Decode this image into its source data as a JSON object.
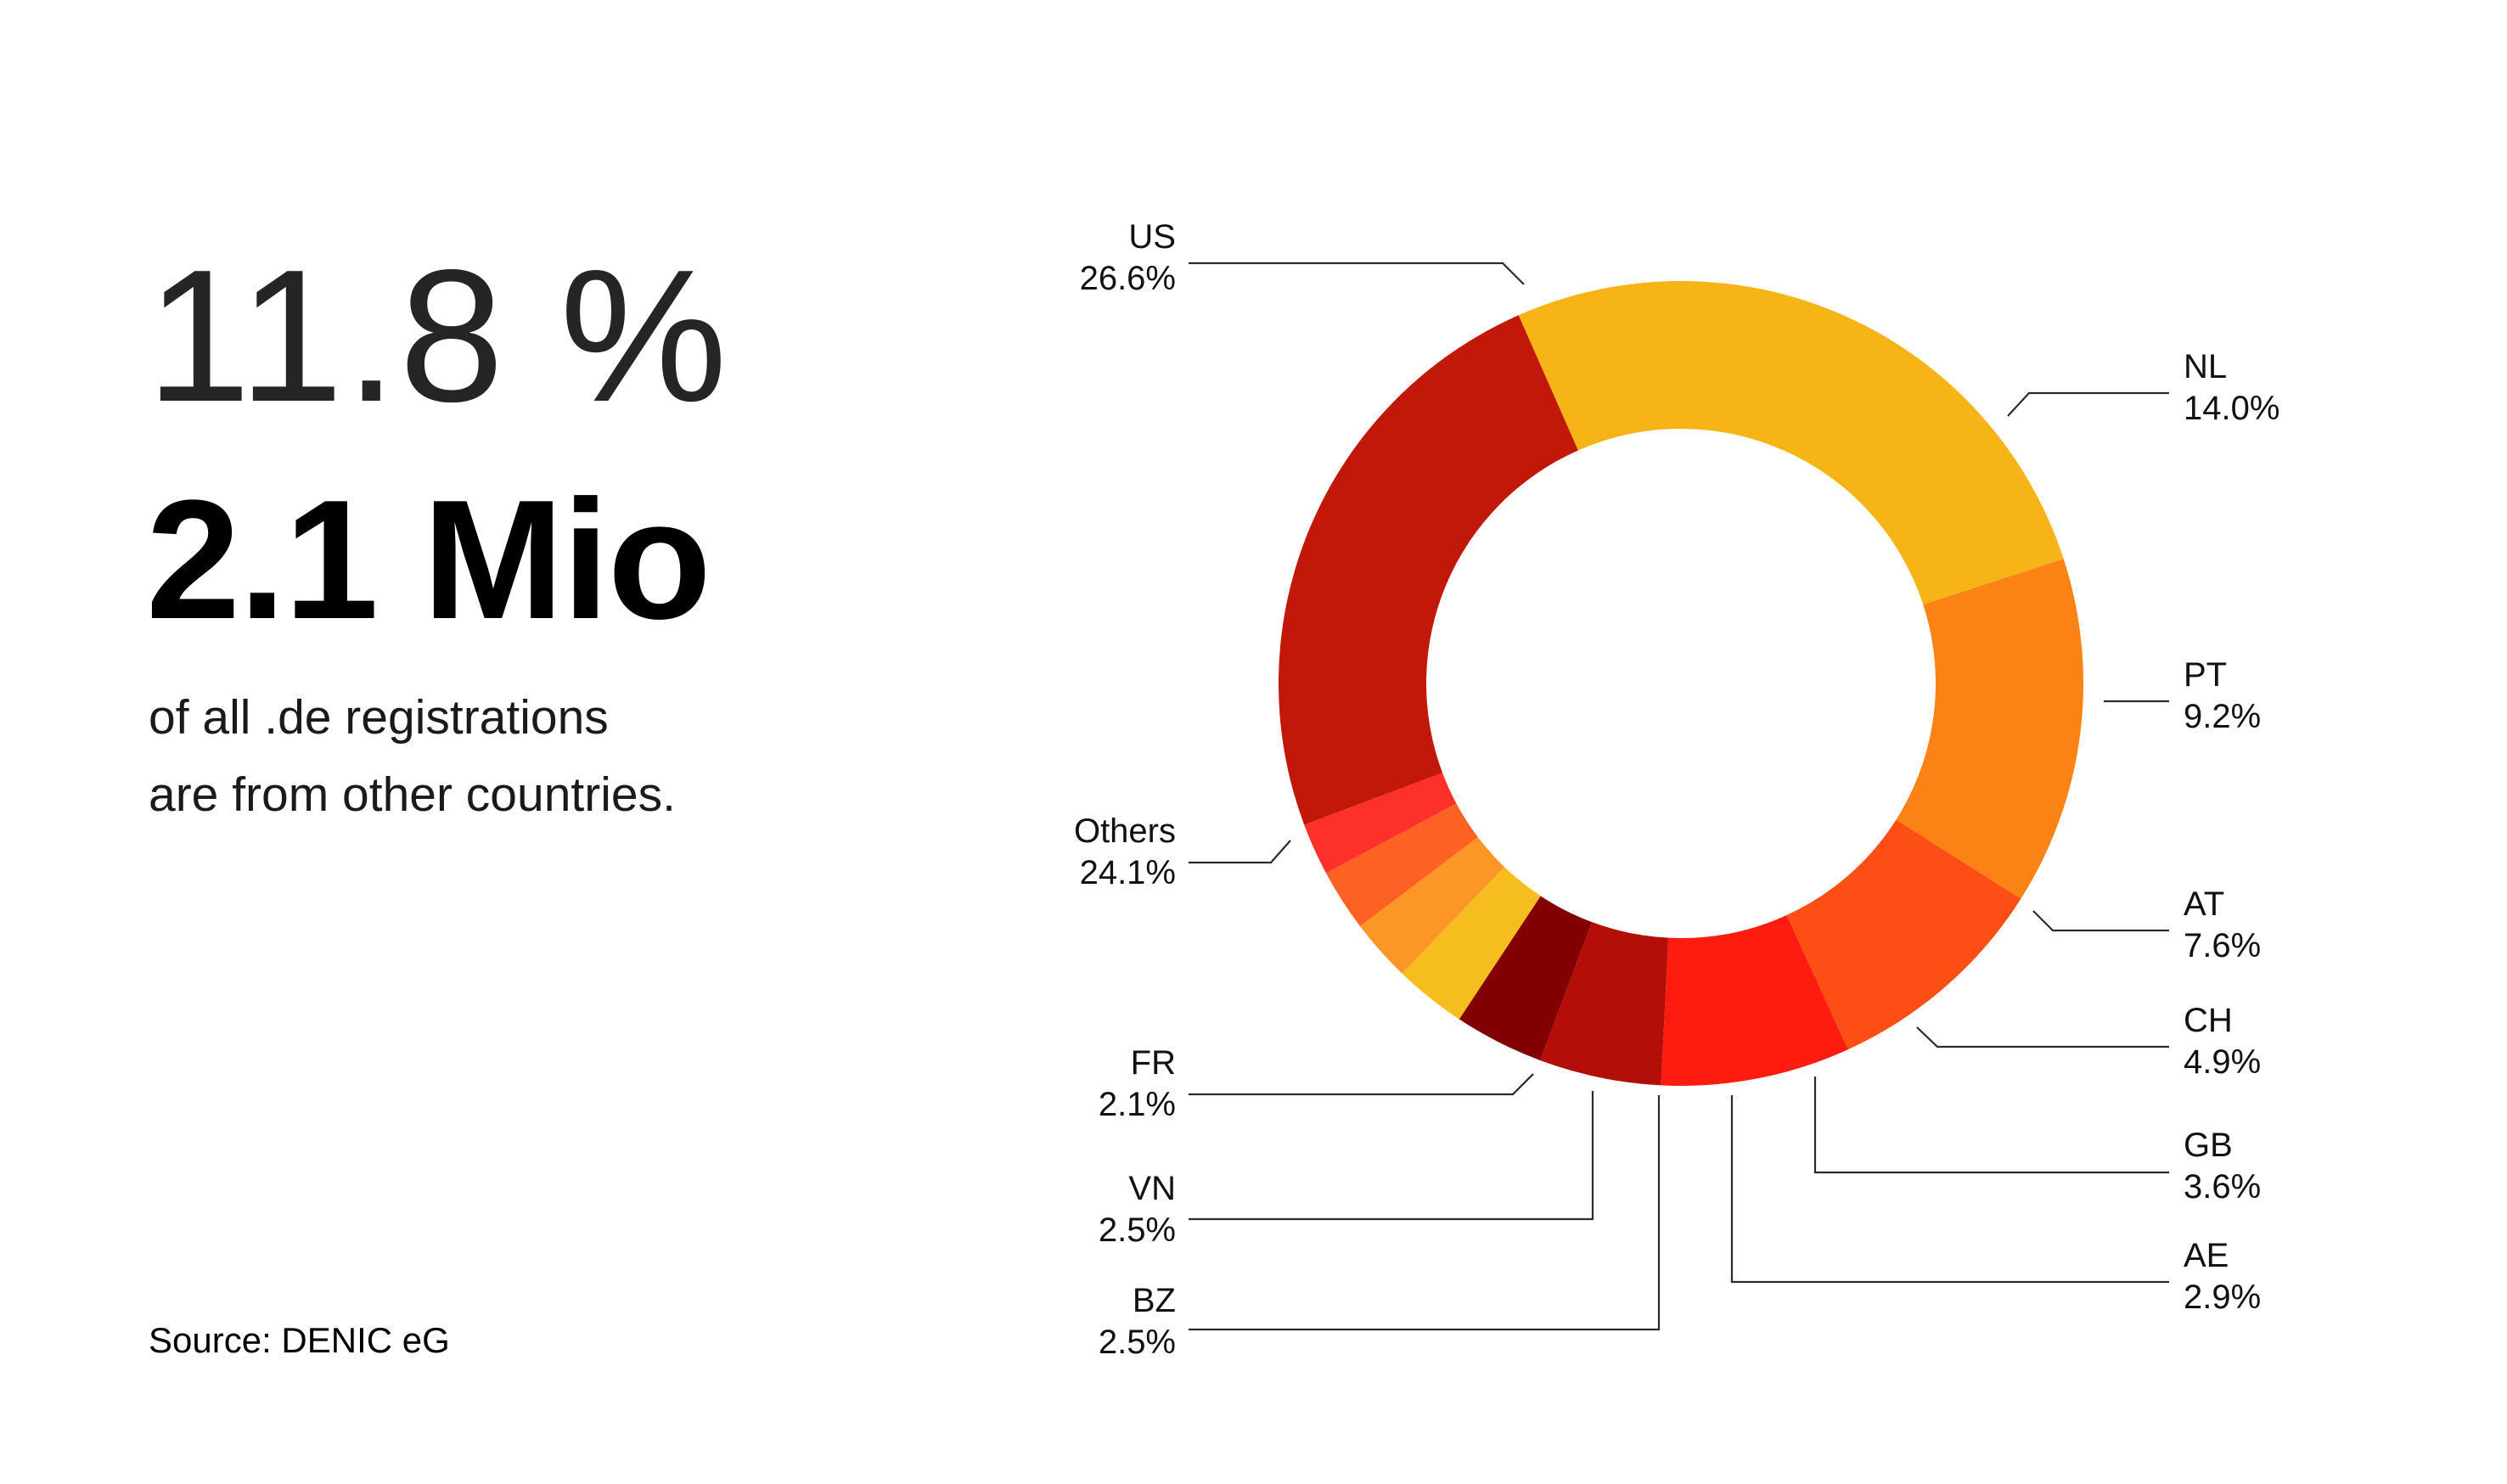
{
  "headline": {
    "percent": "11.8 %",
    "count": "2.1 Mio",
    "line1": "of all .de registrations",
    "line2": "are from other countries."
  },
  "source": "Source: DENIC eG",
  "chart_data": {
    "type": "pie",
    "donut": true,
    "categories": [
      "US",
      "NL",
      "PT",
      "AT",
      "CH",
      "GB",
      "AE",
      "BZ",
      "VN",
      "FR",
      "Others"
    ],
    "values": [
      26.6,
      14.0,
      9.2,
      7.6,
      4.9,
      3.6,
      2.9,
      2.5,
      2.5,
      2.1,
      24.1
    ],
    "labels": [
      "26.6%",
      "14.0%",
      "9.2%",
      "7.6%",
      "4.9%",
      "3.6%",
      "2.9%",
      "2.5%",
      "2.5%",
      "2.1%",
      "24.1%"
    ],
    "colors": [
      "#f7b417",
      "#fb8316",
      "#fd4e16",
      "#fe1b10",
      "#b30e08",
      "#820002",
      "#f6bd1f",
      "#fc9627",
      "#fd6123",
      "#fe312a",
      "#c2180a"
    ]
  }
}
